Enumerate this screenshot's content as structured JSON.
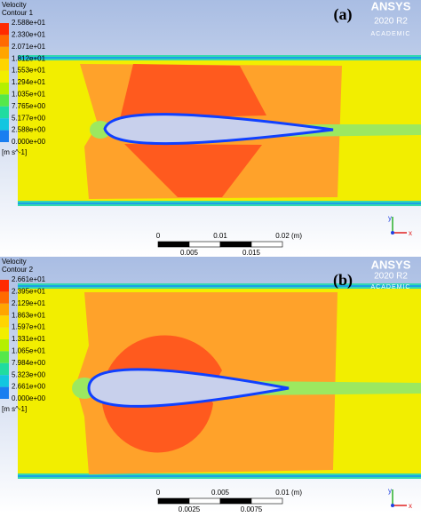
{
  "panels": [
    {
      "label": "(a)",
      "legend": {
        "title": "Velocity",
        "name": "Contour 1",
        "values": [
          "2.588e+01",
          "2.330e+01",
          "2.071e+01",
          "1.812e+01",
          "1.553e+01",
          "1.294e+01",
          "1.035e+01",
          "7.765e+00",
          "5.177e+00",
          "2.588e+00",
          "0.000e+00"
        ],
        "unit": "[m s^-1]"
      },
      "logo": {
        "brand": "ANSYS",
        "version": "2020 R2",
        "edition": "ACADEMIC"
      },
      "scale": {
        "top": [
          "0",
          "0.01",
          "0.02"
        ],
        "unit": "(m)",
        "bottom": [
          "0.005",
          "0.015"
        ]
      },
      "triad": {
        "y": "y",
        "x": "x"
      }
    },
    {
      "label": "(b)",
      "legend": {
        "title": "Velocity",
        "name": "Contour 2",
        "values": [
          "2.661e+01",
          "2.395e+01",
          "2.129e+01",
          "1.863e+01",
          "1.597e+01",
          "1.331e+01",
          "1.065e+01",
          "7.984e+00",
          "5.323e+00",
          "2.661e+00",
          "0.000e+00"
        ],
        "unit": "[m s^-1]"
      },
      "logo": {
        "brand": "ANSYS",
        "version": "2020 R2",
        "edition": "ACADEMIC"
      },
      "scale": {
        "top": [
          "0",
          "0.005",
          "0.01"
        ],
        "unit": "(m)",
        "bottom": [
          "0.0025",
          "0.0075"
        ]
      },
      "triad": {
        "y": "y",
        "x": "x"
      }
    }
  ]
}
